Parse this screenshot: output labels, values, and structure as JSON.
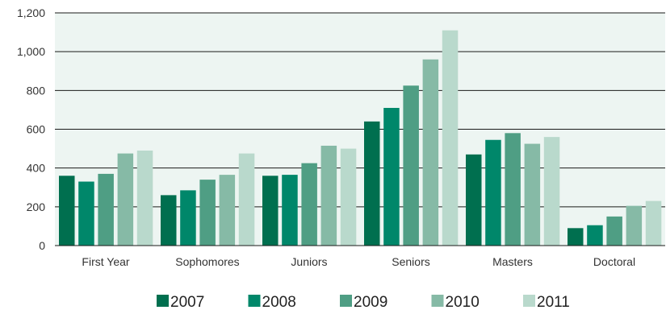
{
  "chart_data": {
    "type": "bar",
    "title": "",
    "xlabel": "",
    "ylabel": "",
    "ylim": [
      0,
      1200
    ],
    "y_ticks": [
      0,
      200,
      400,
      600,
      800,
      1000,
      1200
    ],
    "y_tick_labels": [
      "0",
      "200",
      "400",
      "600",
      "800",
      "1,000",
      "1,200"
    ],
    "grid": true,
    "legend_position": "bottom",
    "plot_background": "#edf5f2",
    "categories": [
      "First Year",
      "Sophomores",
      "Juniors",
      "Seniors",
      "Masters",
      "Doctoral"
    ],
    "series": [
      {
        "name": "2007",
        "color": "#006f4f",
        "values": [
          360,
          260,
          360,
          640,
          470,
          90
        ]
      },
      {
        "name": "2008",
        "color": "#00876a",
        "values": [
          330,
          285,
          365,
          710,
          545,
          105
        ]
      },
      {
        "name": "2009",
        "color": "#4f9e84",
        "values": [
          370,
          340,
          425,
          825,
          580,
          150
        ]
      },
      {
        "name": "2010",
        "color": "#86baa6",
        "values": [
          475,
          365,
          515,
          960,
          525,
          205
        ]
      },
      {
        "name": "2011",
        "color": "#b9d9cc",
        "values": [
          490,
          475,
          500,
          1110,
          560,
          230
        ]
      }
    ]
  }
}
